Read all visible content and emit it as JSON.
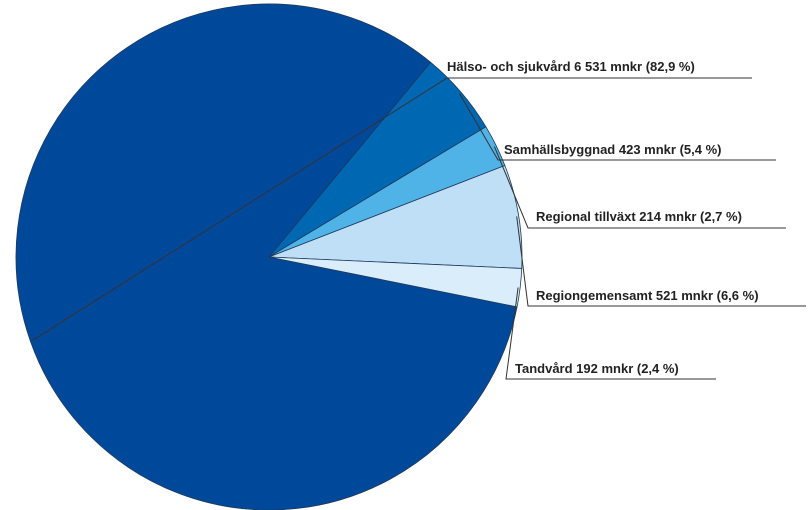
{
  "chart_data": {
    "type": "pie",
    "title": "",
    "unit": "mnkr",
    "start": "top-right, counter-clockwise",
    "slices": [
      {
        "name": "Hälso- och sjukvård",
        "value": 6531,
        "percent": 82.9,
        "label": "Hälso- och sjukvård 6 531 mnkr (82,9 %)",
        "color": "#00489a"
      },
      {
        "name": "Samhällsbyggnad",
        "value": 423,
        "percent": 5.4,
        "label": "Samhällsbyggnad 423 mnkr (5,4 %)",
        "color": "#0067b3"
      },
      {
        "name": "Regional tillväxt",
        "value": 214,
        "percent": 2.7,
        "label": "Regional tillväxt 214 mnkr (2,7 %)",
        "color": "#4fb3e8"
      },
      {
        "name": "Regiongemensamt",
        "value": 521,
        "percent": 6.6,
        "label": "Regiongemensamt 521 mnkr (6,6 %)",
        "color": "#bfdff6"
      },
      {
        "name": "Tandvård",
        "value": 192,
        "percent": 2.4,
        "label": "Tandvård 192 mnkr (2,4 %)",
        "color": "#daedfa"
      }
    ],
    "legend": "none"
  }
}
